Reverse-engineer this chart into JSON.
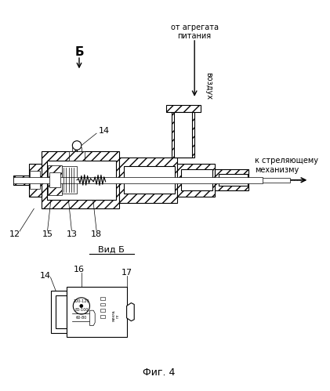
{
  "bg_color": "#ffffff",
  "line_color": "#000000",
  "fig_width": 4.21,
  "fig_height": 4.99,
  "title": "Фиг. 4",
  "label_B": "Б",
  "label_vid_B": "Вид Б",
  "label_from_power": "от агрегата\nпитания",
  "label_air": "воздух",
  "label_to_mech": "к стреляющему\nмеханизму",
  "num_12": "12",
  "num_13": "13",
  "num_14": "14",
  "num_15": "15",
  "num_16": "16",
  "num_17": "17",
  "num_18": "18",
  "font_size_labels": 7,
  "font_size_nums": 8,
  "font_size_title": 9
}
